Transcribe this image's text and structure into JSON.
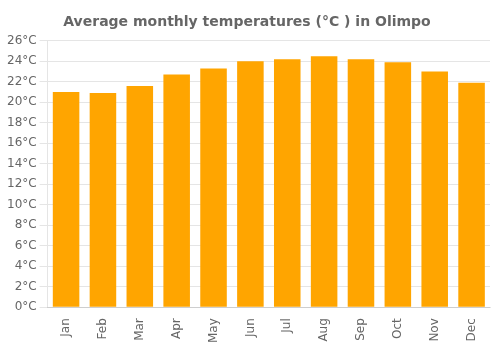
{
  "chart_data": {
    "type": "bar",
    "title": "Average monthly temperatures (°C ) in Olimpo",
    "categories": [
      "Jan",
      "Feb",
      "Mar",
      "Apr",
      "May",
      "Jun",
      "Jul",
      "Aug",
      "Sep",
      "Oct",
      "Nov",
      "Dec"
    ],
    "values": [
      21.0,
      20.9,
      21.6,
      22.7,
      23.3,
      24.0,
      24.2,
      24.5,
      24.2,
      23.9,
      23.0,
      21.9
    ],
    "color": "#FFA500",
    "ylim": [
      0,
      26
    ],
    "yticks": [
      {
        "value": 0,
        "label": "0°C"
      },
      {
        "value": 2,
        "label": "2°C"
      },
      {
        "value": 4,
        "label": "4°C"
      },
      {
        "value": 6,
        "label": "6°C"
      },
      {
        "value": 8,
        "label": "8°C"
      },
      {
        "value": 10,
        "label": "10°C"
      },
      {
        "value": 12,
        "label": "12°C"
      },
      {
        "value": 14,
        "label": "14°C"
      },
      {
        "value": 16,
        "label": "16°C"
      },
      {
        "value": 18,
        "label": "18°C"
      },
      {
        "value": 20,
        "label": "20°C"
      },
      {
        "value": 22,
        "label": "22°C"
      },
      {
        "value": 24,
        "label": "24°C"
      },
      {
        "value": 26,
        "label": "26°C"
      }
    ],
    "grid": true
  }
}
